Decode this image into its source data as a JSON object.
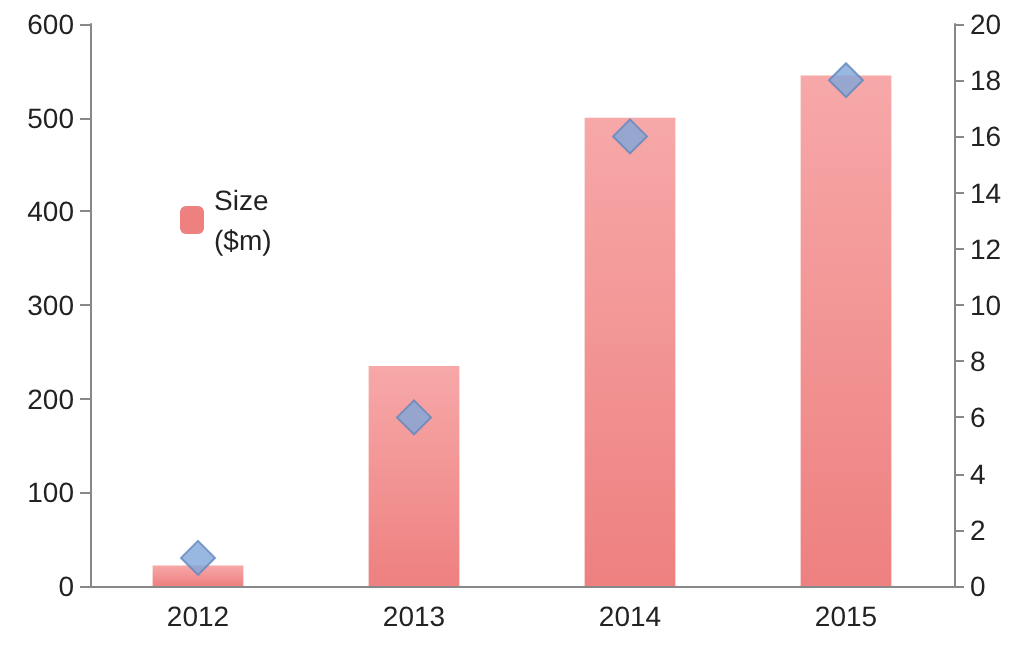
{
  "chart_data": {
    "type": "bar",
    "categories": [
      "2012",
      "2013",
      "2014",
      "2015"
    ],
    "series": [
      {
        "name": "Size ($m)",
        "color": "#ee8080",
        "values": [
          22,
          235,
          500,
          545
        ]
      },
      {
        "type": "scatter",
        "axis": "y2",
        "color": "#7ea6da",
        "marker": "diamond",
        "values": [
          1,
          6,
          16,
          18
        ]
      }
    ],
    "ylim": [
      0,
      600
    ],
    "yticks": [
      0,
      100,
      200,
      300,
      400,
      500,
      600
    ],
    "y2lim": [
      0,
      20
    ],
    "y2ticks": [
      0,
      2,
      4,
      6,
      8,
      10,
      12,
      14,
      16,
      18,
      20
    ],
    "grid": false,
    "legend": "top left"
  }
}
